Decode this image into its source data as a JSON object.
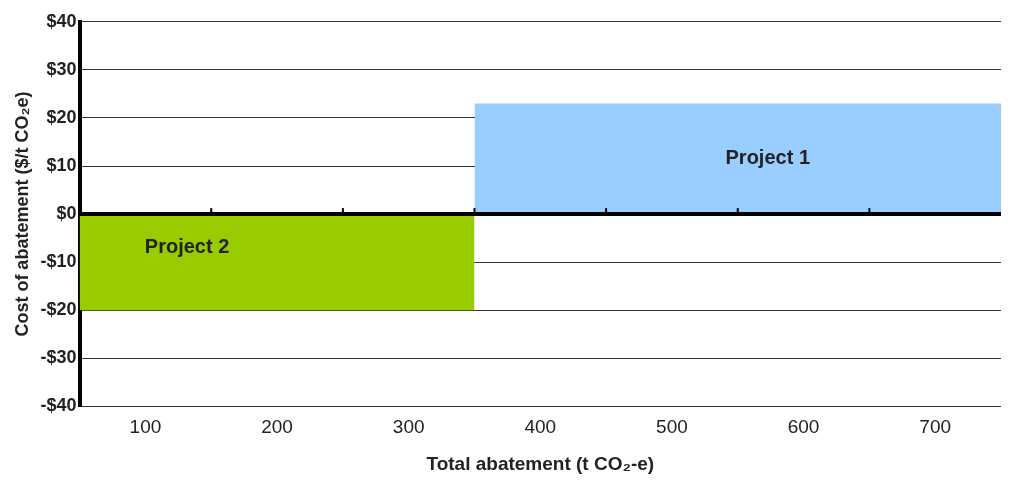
{
  "chart_data": {
    "type": "area",
    "xlabel": "Total abatement (t CO₂-e)",
    "ylabel": "Cost of abatement ($/t CO₂e)",
    "series": [
      {
        "name": "Project 1",
        "color": "#99ccff",
        "x": [
          350,
          750
        ],
        "values": [
          23,
          23
        ]
      },
      {
        "name": "Project 2",
        "color": "#99cc00",
        "x": [
          50,
          350
        ],
        "values": [
          -20,
          -20
        ]
      }
    ],
    "xlim": [
      50,
      750
    ],
    "xticks": [
      100,
      {
        "value": 150,
        "label": null
      },
      200,
      {
        "value": 250,
        "label": null
      },
      300,
      {
        "value": 350,
        "label": null
      },
      400,
      {
        "value": 450,
        "label": null
      },
      500,
      {
        "value": 550,
        "label": null
      },
      600,
      {
        "value": 650,
        "label": null
      },
      700
    ],
    "ylim": [
      -40,
      40
    ],
    "yticks": [
      {
        "value": -40,
        "label": "-$40"
      },
      {
        "value": -30,
        "label": "-$30"
      },
      {
        "value": -20,
        "label": "-$20"
      },
      {
        "value": -10,
        "label": "-$10"
      },
      {
        "value": 0,
        "label": "$0"
      },
      {
        "value": 10,
        "label": "$10"
      },
      {
        "value": 20,
        "label": "$20"
      },
      {
        "value": 30,
        "label": "$30"
      },
      {
        "value": 40,
        "label": "$40"
      }
    ],
    "grid": "y",
    "legend": false
  }
}
